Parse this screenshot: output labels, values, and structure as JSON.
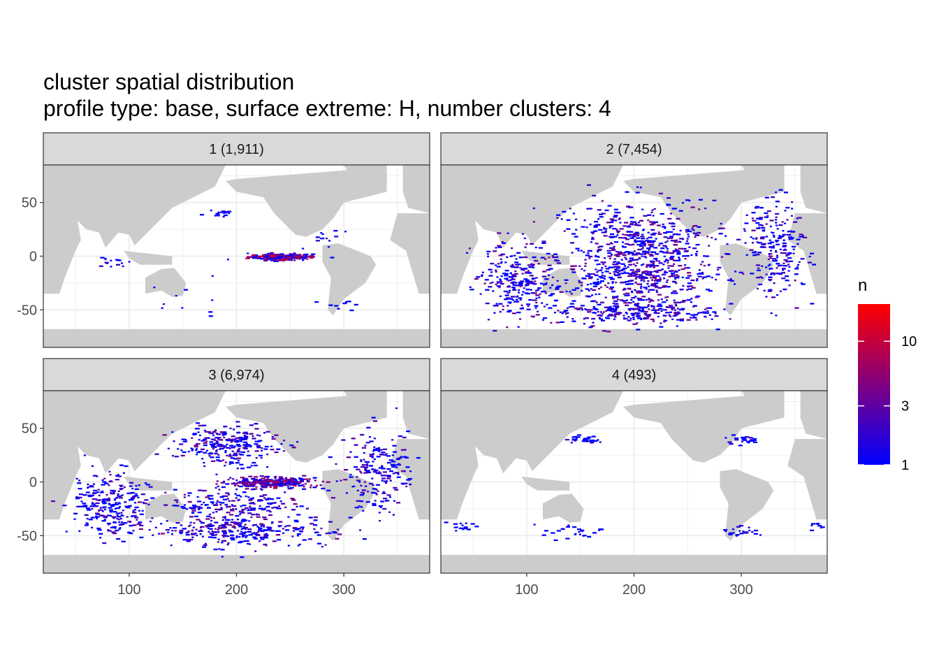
{
  "chart_data": {
    "type": "heatmap",
    "title": "cluster spatial distribution",
    "subtitle": "profile type: base, surface extreme: H, number clusters: 4",
    "xlabel": "",
    "ylabel": "",
    "xlim": [
      20,
      380
    ],
    "ylim": [
      -85,
      85
    ],
    "x_ticks": [
      100,
      200,
      300
    ],
    "y_ticks": [
      50,
      0,
      -50
    ],
    "grid": true,
    "legend": {
      "title": "n",
      "position": "right",
      "scale": "log",
      "range": [
        1,
        20
      ],
      "breaks": [
        1,
        3,
        10
      ],
      "colors": {
        "low": "#0000ff",
        "high": "#ff0000"
      }
    },
    "facets": [
      {
        "label": "1 (1,911)",
        "hotspots": [
          {
            "lon": 240,
            "lat": 0,
            "lon_spread": 24,
            "lat_spread": 2.5,
            "n_max": 12,
            "count": 260
          },
          {
            "lon": 180,
            "lat": 40,
            "lon_spread": 16,
            "lat_spread": 3,
            "n_max": 2,
            "count": 16
          },
          {
            "lon": 80,
            "lat": -5,
            "lon_spread": 15,
            "lat_spread": 4,
            "n_max": 2,
            "count": 14
          },
          {
            "lon": 280,
            "lat": 20,
            "lon_spread": 14,
            "lat_spread": 8,
            "n_max": 2,
            "count": 12
          },
          {
            "lon": 300,
            "lat": -45,
            "lon_spread": 16,
            "lat_spread": 5,
            "n_max": 1,
            "count": 10
          },
          {
            "lon": 150,
            "lat": -35,
            "lon_spread": 40,
            "lat_spread": 15,
            "n_max": 1,
            "count": 10
          }
        ]
      },
      {
        "label": "2 (7,454)",
        "hotspots": [
          {
            "lon": 200,
            "lat": 10,
            "lon_spread": 60,
            "lat_spread": 35,
            "n_max": 4,
            "count": 560
          },
          {
            "lon": 90,
            "lat": -25,
            "lon_spread": 30,
            "lat_spread": 30,
            "n_max": 4,
            "count": 260
          },
          {
            "lon": 200,
            "lat": -50,
            "lon_spread": 70,
            "lat_spread": 12,
            "n_max": 4,
            "count": 300
          },
          {
            "lon": 330,
            "lat": 10,
            "lon_spread": 25,
            "lat_spread": 35,
            "n_max": 3,
            "count": 220
          },
          {
            "lon": 200,
            "lat": -20,
            "lon_spread": 60,
            "lat_spread": 15,
            "n_max": 5,
            "count": 240
          }
        ]
      },
      {
        "label": "3 (6,974)",
        "hotspots": [
          {
            "lon": 230,
            "lat": 0,
            "lon_spread": 35,
            "lat_spread": 4,
            "n_max": 8,
            "count": 320
          },
          {
            "lon": 190,
            "lat": 35,
            "lon_spread": 40,
            "lat_spread": 15,
            "n_max": 4,
            "count": 260
          },
          {
            "lon": 80,
            "lat": -20,
            "lon_spread": 30,
            "lat_spread": 25,
            "n_max": 3,
            "count": 260
          },
          {
            "lon": 200,
            "lat": -45,
            "lon_spread": 70,
            "lat_spread": 12,
            "n_max": 4,
            "count": 300
          },
          {
            "lon": 330,
            "lat": 10,
            "lon_spread": 25,
            "lat_spread": 30,
            "n_max": 3,
            "count": 200
          },
          {
            "lon": 200,
            "lat": -20,
            "lon_spread": 50,
            "lat_spread": 12,
            "n_max": 4,
            "count": 180
          }
        ]
      },
      {
        "label": "4 (493)",
        "hotspots": [
          {
            "lon": 150,
            "lat": 40,
            "lon_spread": 12,
            "lat_spread": 3,
            "n_max": 2,
            "count": 30
          },
          {
            "lon": 300,
            "lat": 40,
            "lon_spread": 14,
            "lat_spread": 3,
            "n_max": 2,
            "count": 24
          },
          {
            "lon": 140,
            "lat": -45,
            "lon_spread": 30,
            "lat_spread": 6,
            "n_max": 1,
            "count": 26
          },
          {
            "lon": 300,
            "lat": -45,
            "lon_spread": 16,
            "lat_spread": 4,
            "n_max": 2,
            "count": 22
          },
          {
            "lon": 40,
            "lat": -40,
            "lon_spread": 12,
            "lat_spread": 4,
            "n_max": 1,
            "count": 14
          },
          {
            "lon": 370,
            "lat": -40,
            "lon_spread": 6,
            "lat_spread": 4,
            "n_max": 1,
            "count": 8
          }
        ]
      }
    ]
  }
}
